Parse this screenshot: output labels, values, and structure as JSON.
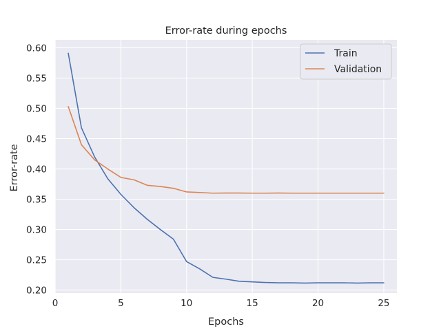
{
  "chart_data": {
    "type": "line",
    "title": "Error-rate during epochs",
    "xlabel": "Epochs",
    "ylabel": "Error-rate",
    "xlim": [
      0,
      26
    ],
    "ylim": [
      0.195,
      0.613
    ],
    "xticks": [
      0,
      5,
      10,
      15,
      20,
      25
    ],
    "yticks": [
      0.2,
      0.25,
      0.3,
      0.35,
      0.4,
      0.45,
      0.5,
      0.55,
      0.6
    ],
    "ytick_labels": [
      "0.20",
      "0.25",
      "0.30",
      "0.35",
      "0.40",
      "0.45",
      "0.50",
      "0.55",
      "0.60"
    ],
    "grid": true,
    "legend_position": "top-right",
    "x": [
      1,
      2,
      3,
      4,
      5,
      6,
      7,
      8,
      9,
      10,
      11,
      12,
      13,
      14,
      15,
      16,
      17,
      18,
      19,
      20,
      21,
      22,
      23,
      24,
      25
    ],
    "series": [
      {
        "name": "Train",
        "color": "#4c72b0",
        "values": [
          0.591,
          0.468,
          0.42,
          0.384,
          0.358,
          0.336,
          0.317,
          0.3,
          0.284,
          0.247,
          0.235,
          0.221,
          0.218,
          0.2145,
          0.2135,
          0.2125,
          0.212,
          0.212,
          0.2115,
          0.212,
          0.212,
          0.212,
          0.2115,
          0.212,
          0.212
        ]
      },
      {
        "name": "Validation",
        "color": "#dd8452",
        "values": [
          0.503,
          0.44,
          0.415,
          0.4,
          0.386,
          0.382,
          0.373,
          0.371,
          0.368,
          0.362,
          0.361,
          0.36,
          0.3602,
          0.3602,
          0.36,
          0.36,
          0.3602,
          0.36,
          0.36,
          0.36,
          0.36,
          0.36,
          0.36,
          0.36,
          0.36
        ]
      }
    ]
  }
}
